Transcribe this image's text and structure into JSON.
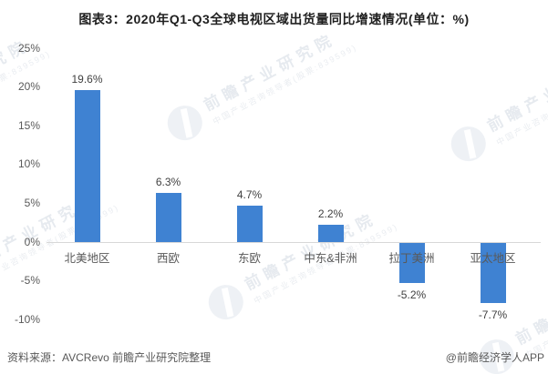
{
  "title": "图表3：2020年Q1-Q3全球电视区域出货量同比增速情况(单位：%)",
  "chart_data": {
    "type": "bar",
    "title": "图表3：2020年Q1-Q3全球电视区域出货量同比增速情况(单位：%)",
    "unit": "%",
    "categories": [
      "北美地区",
      "西欧",
      "东欧",
      "中东&非洲",
      "拉丁美洲",
      "亚太地区"
    ],
    "values": [
      19.6,
      6.3,
      4.7,
      2.2,
      -5.2,
      -7.7
    ],
    "value_labels": [
      "19.6%",
      "6.3%",
      "4.7%",
      "2.2%",
      "-5.2%",
      "-7.7%"
    ],
    "xlabel": "",
    "ylabel": "",
    "ylim": [
      -10,
      25
    ],
    "yticks": [
      25,
      20,
      15,
      10,
      5,
      0,
      -5,
      -10
    ],
    "ytick_labels": [
      "25%",
      "20%",
      "15%",
      "10%",
      "5%",
      "0%",
      "-5%",
      "-10%"
    ],
    "grid": false,
    "legend_position": "none",
    "bar_color": "#3F82D2"
  },
  "footer": {
    "source": "资料来源：AVCRevo 前瞻产业研究院整理",
    "credit": "@前瞻经济学人APP"
  },
  "watermark": {
    "main": "前瞻产业研究院",
    "sub": "中国产业咨询领导者(股票:839599)"
  },
  "colors": {
    "bar": "#3F82D2",
    "axis_line": "#d8d8d8",
    "tick_text": "#595959",
    "value_text": "#404040",
    "title_text": "#1f1f1f",
    "footer_text": "#595959",
    "watermark_text": "#e6eaef"
  }
}
